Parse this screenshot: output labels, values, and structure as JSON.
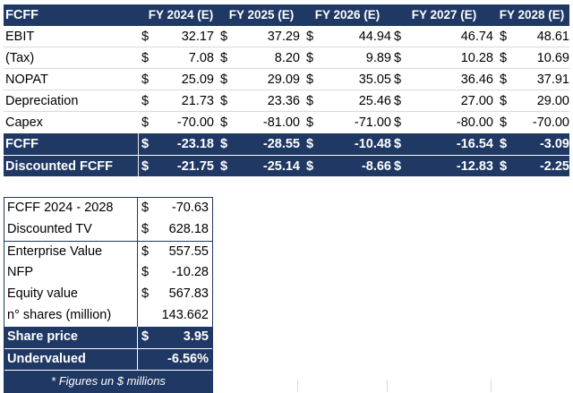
{
  "fcff_table": {
    "title": "FCFF",
    "years": [
      "FY 2024 (E)",
      "FY 2025 (E)",
      "FY 2026 (E)",
      "FY 2027 (E)",
      "FY 2028 (E)"
    ],
    "currency": "$",
    "rows": [
      {
        "label": "EBIT",
        "values": [
          "32.17",
          "37.29",
          "44.94",
          "46.74",
          "48.61"
        ]
      },
      {
        "label": "(Tax)",
        "values": [
          "7.08",
          "8.20",
          "9.89",
          "10.28",
          "10.69"
        ]
      },
      {
        "label": "NOPAT",
        "values": [
          "25.09",
          "29.09",
          "35.05",
          "36.46",
          "37.91"
        ]
      },
      {
        "label": "Depreciation",
        "values": [
          "21.73",
          "23.36",
          "25.46",
          "27.00",
          "29.00"
        ]
      },
      {
        "label": "Capex",
        "values": [
          "-70.00",
          "-81.00",
          "-71.00",
          "-80.00",
          "-70.00"
        ]
      }
    ],
    "total_rows": [
      {
        "label": "FCFF",
        "values": [
          "-23.18",
          "-28.55",
          "-10.48",
          "-16.54",
          "-3.09"
        ]
      },
      {
        "label": "Discounted FCFF",
        "values": [
          "-21.75",
          "-25.14",
          "-8.66",
          "-12.83",
          "-2.25"
        ]
      }
    ]
  },
  "valuation_table": {
    "rows": [
      {
        "label": "FCFF 2024 - 2028",
        "currency": "$",
        "value": "-70.63"
      },
      {
        "label": "Discounted TV",
        "currency": "$",
        "value": "628.18"
      },
      {
        "label": "Enterprise Value",
        "currency": "$",
        "value": "557.55"
      },
      {
        "label": "NFP",
        "currency": "$",
        "value": "-10.28"
      },
      {
        "label": "Equity value",
        "currency": "$",
        "value": "567.83"
      },
      {
        "label": "n° shares (million)",
        "currency": "",
        "value": "143.662"
      }
    ],
    "share_price": {
      "label": "Share price",
      "currency": "$",
      "value": "3.95"
    },
    "undervalued": {
      "label": "Undervalued",
      "value": "-6.56%"
    },
    "note": "* Figures un $ millions"
  }
}
